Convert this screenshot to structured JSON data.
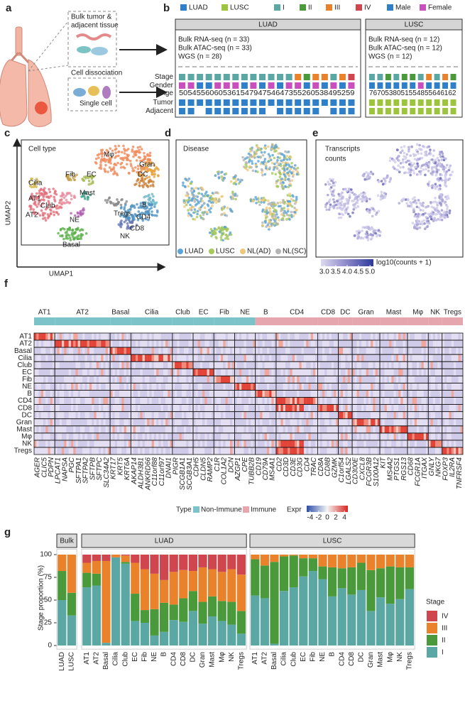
{
  "panel_labels": [
    "a",
    "b",
    "c",
    "d",
    "e",
    "f",
    "g"
  ],
  "panel_a": {
    "labels": [
      "Bulk tumor &",
      "adjacent tissue",
      "Cell dissociation",
      "Single cell"
    ]
  },
  "panel_b": {
    "legend": [
      {
        "name": "LUAD",
        "color": "#2f80c8"
      },
      {
        "name": "LUSC",
        "color": "#9cc43c"
      },
      {
        "name": "I",
        "color": "#5ba7a3"
      },
      {
        "name": "II",
        "color": "#4a9a3b"
      },
      {
        "name": "III",
        "color": "#ea822c"
      },
      {
        "name": "IV",
        "color": "#d0464f"
      },
      {
        "name": "Male",
        "color": "#2f80c8"
      },
      {
        "name": "Female",
        "color": "#c94fbe"
      }
    ],
    "row_labels": [
      "Stage",
      "Gender",
      "Age",
      "Tumor",
      "Adjacent"
    ],
    "cohorts": [
      {
        "name": "LUAD",
        "lines": [
          "Bulk RNA-seq (n = 33)",
          "Bulk ATAC-seq (n = 33)",
          "WGS (n = 28)"
        ],
        "ages": "5054556060536154794754647355260538495259",
        "stage": [
          "I",
          "I",
          "I",
          "I",
          "I",
          "I",
          "I",
          "I",
          "I",
          "I",
          "I",
          "I",
          "I",
          "III",
          "II",
          "III",
          "III",
          "I",
          "III",
          "IV"
        ],
        "gender": [
          "Female",
          "Female",
          "Male",
          "Male",
          "Female",
          "Female",
          "Female",
          "Male",
          "Female",
          "Male",
          "Female",
          "Male",
          "Female",
          "Female",
          "Male",
          "Female",
          "Male",
          "Female",
          "Male",
          "Female"
        ],
        "tumor": [
          true,
          true,
          true,
          true,
          true,
          true,
          true,
          true,
          true,
          true,
          true,
          true,
          true,
          true,
          true,
          true,
          true,
          true,
          true,
          true
        ],
        "adjacent": [
          true,
          true,
          false,
          true,
          true,
          true,
          true,
          true,
          true,
          true,
          false,
          true,
          true,
          true,
          true,
          true,
          false,
          true,
          true,
          true
        ]
      },
      {
        "name": "LUSC",
        "lines": [
          "Bulk RNA-seq (n = 12)",
          "Bulk ATAC-seq (n = 12)",
          "WGS (n = 12)"
        ],
        "ages": "7670538051554855646162",
        "stage": [
          "I",
          "I",
          "II",
          "I",
          "II",
          "II",
          "I",
          "III",
          "I",
          "III",
          "II"
        ],
        "gender": [
          "Male",
          "Male",
          "Male",
          "Male",
          "Male",
          "Male",
          "Female",
          "Male",
          "Male",
          "Male",
          "Male"
        ],
        "tumor": [
          true,
          true,
          true,
          true,
          true,
          true,
          true,
          true,
          true,
          true,
          true
        ],
        "adjacent": [
          true,
          true,
          true,
          true,
          true,
          true,
          true,
          true,
          true,
          true,
          true
        ]
      }
    ]
  },
  "panel_c": {
    "title": "Cell type",
    "labels": [
      "Mφ",
      "Gran",
      "DC",
      "Fib",
      "EC",
      "Cilia",
      "AT1",
      "Club",
      "Mast",
      "AT2",
      "B",
      "Tregs",
      "CD4",
      "NE",
      "CD8",
      "NK",
      "Basal"
    ],
    "x_label": "UMAP1",
    "y_label": "UMAP2"
  },
  "panel_d": {
    "title": "Disease",
    "legend": [
      {
        "name": "LUAD",
        "color": "#5ba4d6"
      },
      {
        "name": "LUSC",
        "color": "#a6c85a"
      },
      {
        "name": "NL(AD)",
        "color": "#efc97a"
      },
      {
        "name": "NL(SC)",
        "color": "#b4b4b4"
      }
    ]
  },
  "panel_e": {
    "title": [
      "Transcripts",
      "counts"
    ],
    "colorbar": {
      "label": "log10(counts + 1)",
      "lim": [
        2.85,
        5.15
      ],
      "ticks": [
        {
          "value": 3,
          "label": "3.0"
        },
        3.5,
        {
          "value": 4,
          "label": "4.0"
        },
        4.5,
        {
          "value": 5,
          "label": "5.0"
        }
      ]
    }
  },
  "panel_f": {
    "column_groups": [
      {
        "name": "AT1",
        "type": "Non-Immune",
        "genes": [
          "AGER",
          "CLIC5",
          "PDPN"
        ]
      },
      {
        "name": "AT2",
        "type": "Non-Immune",
        "genes": [
          "LPCAT1",
          "NAPSA",
          "PGC",
          "SFTPA1",
          "SFTPA2",
          "SFTPB",
          "SFTPC",
          "SLC34A2"
        ]
      },
      {
        "name": "Basal",
        "type": "Non-Immune",
        "genes": [
          "KRT17",
          "KRT5",
          "KRT6A"
        ]
      },
      {
        "name": "Cilia",
        "type": "Non-Immune",
        "genes": [
          "AKAP14",
          "ALDH3B1",
          "ANKRD66",
          "C11orf88",
          "C11orf97",
          "DNAI1"
        ]
      },
      {
        "name": "Club",
        "type": "Non-Immune",
        "genes": [
          "PIGR",
          "SCGB1A1",
          "SCGB3A1"
        ]
      },
      {
        "name": "EC",
        "type": "Non-Immune",
        "genes": [
          "CDH5",
          "CLDN5",
          "RAMP2"
        ]
      },
      {
        "name": "Fib",
        "type": "Non-Immune",
        "genes": [
          "C1R",
          "COL1A2",
          "DCN"
        ]
      },
      {
        "name": "NE",
        "type": "Non-Immune",
        "genes": [
          "AZGP1",
          "CPE",
          "TUBB2B"
        ]
      },
      {
        "name": "B",
        "type": "Immune",
        "genes": [
          "CD19",
          "CD79A",
          "MS4A1"
        ]
      },
      {
        "name": "CD4",
        "type": "Immune",
        "genes": [
          "CD2",
          "CD3D",
          "CD3E",
          "CD3G",
          "CD4",
          "TRAC"
        ]
      },
      {
        "name": "CD8",
        "type": "Immune",
        "genes": [
          "CD8A",
          "CD8B",
          "GZMK"
        ]
      },
      {
        "name": "DC",
        "type": "Immune",
        "genes": [
          "C1orf54",
          "LGALS2"
        ]
      },
      {
        "name": "Gran",
        "type": "Immune",
        "genes": [
          "CD300E",
          "CXCL8",
          "FCGR3B",
          "S100A12"
        ]
      },
      {
        "name": "Mast",
        "type": "Immune",
        "genes": [
          "KIT",
          "MS4A2",
          "PTGS1",
          "RGS13"
        ]
      },
      {
        "name": "Mφ",
        "type": "Immune",
        "genes": [
          "CD68",
          "FCGR1A",
          "ITGAX"
        ]
      },
      {
        "name": "NK",
        "type": "Immune",
        "genes": [
          "GNLY",
          "NKG7"
        ]
      },
      {
        "name": "Tregs",
        "type": "Immune",
        "genes": [
          "FOXP3",
          "IL2RA",
          "TNFRSF4"
        ]
      }
    ],
    "rows": [
      "AT1",
      "AT2",
      "Basal",
      "Cilia",
      "Club",
      "EC",
      "Fib",
      "NE",
      "B",
      "CD4",
      "CD8",
      "DC",
      "Gran",
      "Mast",
      "Mφ",
      "NK",
      "Tregs"
    ],
    "legend": {
      "type_title": "Type",
      "types": [
        {
          "name": "Non-Immune",
          "color": "#7cc3c9"
        },
        {
          "name": "Immune",
          "color": "#e6a6ad"
        }
      ],
      "expr_title": "Expr",
      "expr_lim": [
        -4.8,
        4.8
      ],
      "expr_ticks": [
        -4,
        -2,
        0,
        2,
        4
      ]
    }
  },
  "chart_data": [
    {
      "type": "bar",
      "stacked": true,
      "title": "Bulk",
      "y_label": "Stage proportion (%)",
      "ylim": [
        -4,
        106
      ],
      "yticks": [
        0,
        25,
        50,
        75,
        100
      ],
      "legend_title": "Stage",
      "label_color": "#72b6d6",
      "categories": [
        "LUAD",
        "LUSC"
      ],
      "series": [
        {
          "name": "I",
          "color": "#5ba7a3",
          "values": [
            50,
            33
          ]
        },
        {
          "name": "II",
          "color": "#4a9a3b",
          "values": [
            32,
            25
          ]
        },
        {
          "name": "III",
          "color": "#ea822c",
          "values": [
            18,
            42
          ]
        },
        {
          "name": "IV",
          "color": "#d0464f",
          "values": [
            0,
            0
          ]
        }
      ]
    },
    {
      "type": "bar",
      "stacked": true,
      "title": "LUAD",
      "categories": [
        "AT1",
        "AT2",
        "Basal",
        "Cilia",
        "Club",
        "EC",
        "Fib",
        "NE",
        "B",
        "CD4",
        "CD8",
        "DC",
        "Gran",
        "Mast",
        "Mφ",
        "NK",
        "Tregs"
      ],
      "category_types": [
        "Non-Immune",
        "Non-Immune",
        "Non-Immune",
        "Non-Immune",
        "Non-Immune",
        "Non-Immune",
        "Non-Immune",
        "Non-Immune",
        "Immune",
        "Immune",
        "Immune",
        "Immune",
        "Immune",
        "Immune",
        "Immune",
        "Immune",
        "Immune"
      ],
      "series": [
        {
          "name": "I",
          "color": "#5ba7a3",
          "values": [
            64,
            66,
            3,
            97,
            90,
            27,
            25,
            11,
            15,
            28,
            26,
            38,
            24,
            32,
            27,
            23,
            13
          ]
        },
        {
          "name": "II",
          "color": "#4a9a3b",
          "values": [
            16,
            13,
            0,
            0,
            2,
            30,
            14,
            29,
            32,
            17,
            26,
            22,
            24,
            22,
            22,
            25,
            25
          ]
        },
        {
          "name": "III",
          "color": "#ea822c",
          "values": [
            11,
            14,
            90,
            3,
            7,
            34,
            45,
            39,
            25,
            36,
            31,
            22,
            38,
            30,
            32,
            36,
            40
          ]
        },
        {
          "name": "IV",
          "color": "#d0464f",
          "values": [
            9,
            7,
            7,
            0,
            1,
            9,
            16,
            21,
            28,
            19,
            17,
            18,
            14,
            16,
            19,
            16,
            22
          ]
        }
      ]
    },
    {
      "type": "bar",
      "stacked": true,
      "title": "LUSC",
      "categories": [
        "AT1",
        "AT2",
        "Basal",
        "Cilia",
        "Club",
        "EC",
        "Fib",
        "NE",
        "B",
        "CD4",
        "CD8",
        "DC",
        "Gran",
        "Mast",
        "Mφ",
        "NK",
        "Tregs"
      ],
      "category_types": [
        "Non-Immune",
        "Non-Immune",
        "Non-Immune",
        "Non-Immune",
        "Non-Immune",
        "Non-Immune",
        "Non-Immune",
        "Non-Immune",
        "Immune",
        "Immune",
        "Immune",
        "Immune",
        "Immune",
        "Immune",
        "Immune",
        "Immune",
        "Immune"
      ],
      "series": [
        {
          "name": "I",
          "color": "#5ba7a3",
          "values": [
            55,
            52,
            2,
            60,
            64,
            76,
            82,
            73,
            54,
            63,
            56,
            61,
            38,
            53,
            46,
            51,
            62
          ]
        },
        {
          "name": "II",
          "color": "#4a9a3b",
          "values": [
            40,
            36,
            90,
            38,
            35,
            20,
            14,
            14,
            32,
            22,
            30,
            30,
            45,
            32,
            41,
            35,
            24
          ]
        },
        {
          "name": "III",
          "color": "#ea822c",
          "values": [
            5,
            12,
            8,
            2,
            1,
            4,
            4,
            13,
            14,
            15,
            14,
            9,
            17,
            15,
            13,
            14,
            14
          ]
        },
        {
          "name": "IV",
          "color": "#d0464f",
          "values": [
            0,
            0,
            0,
            0,
            0,
            0,
            0,
            0,
            0,
            0,
            0,
            0,
            0,
            0,
            0,
            0,
            0
          ]
        }
      ]
    }
  ]
}
